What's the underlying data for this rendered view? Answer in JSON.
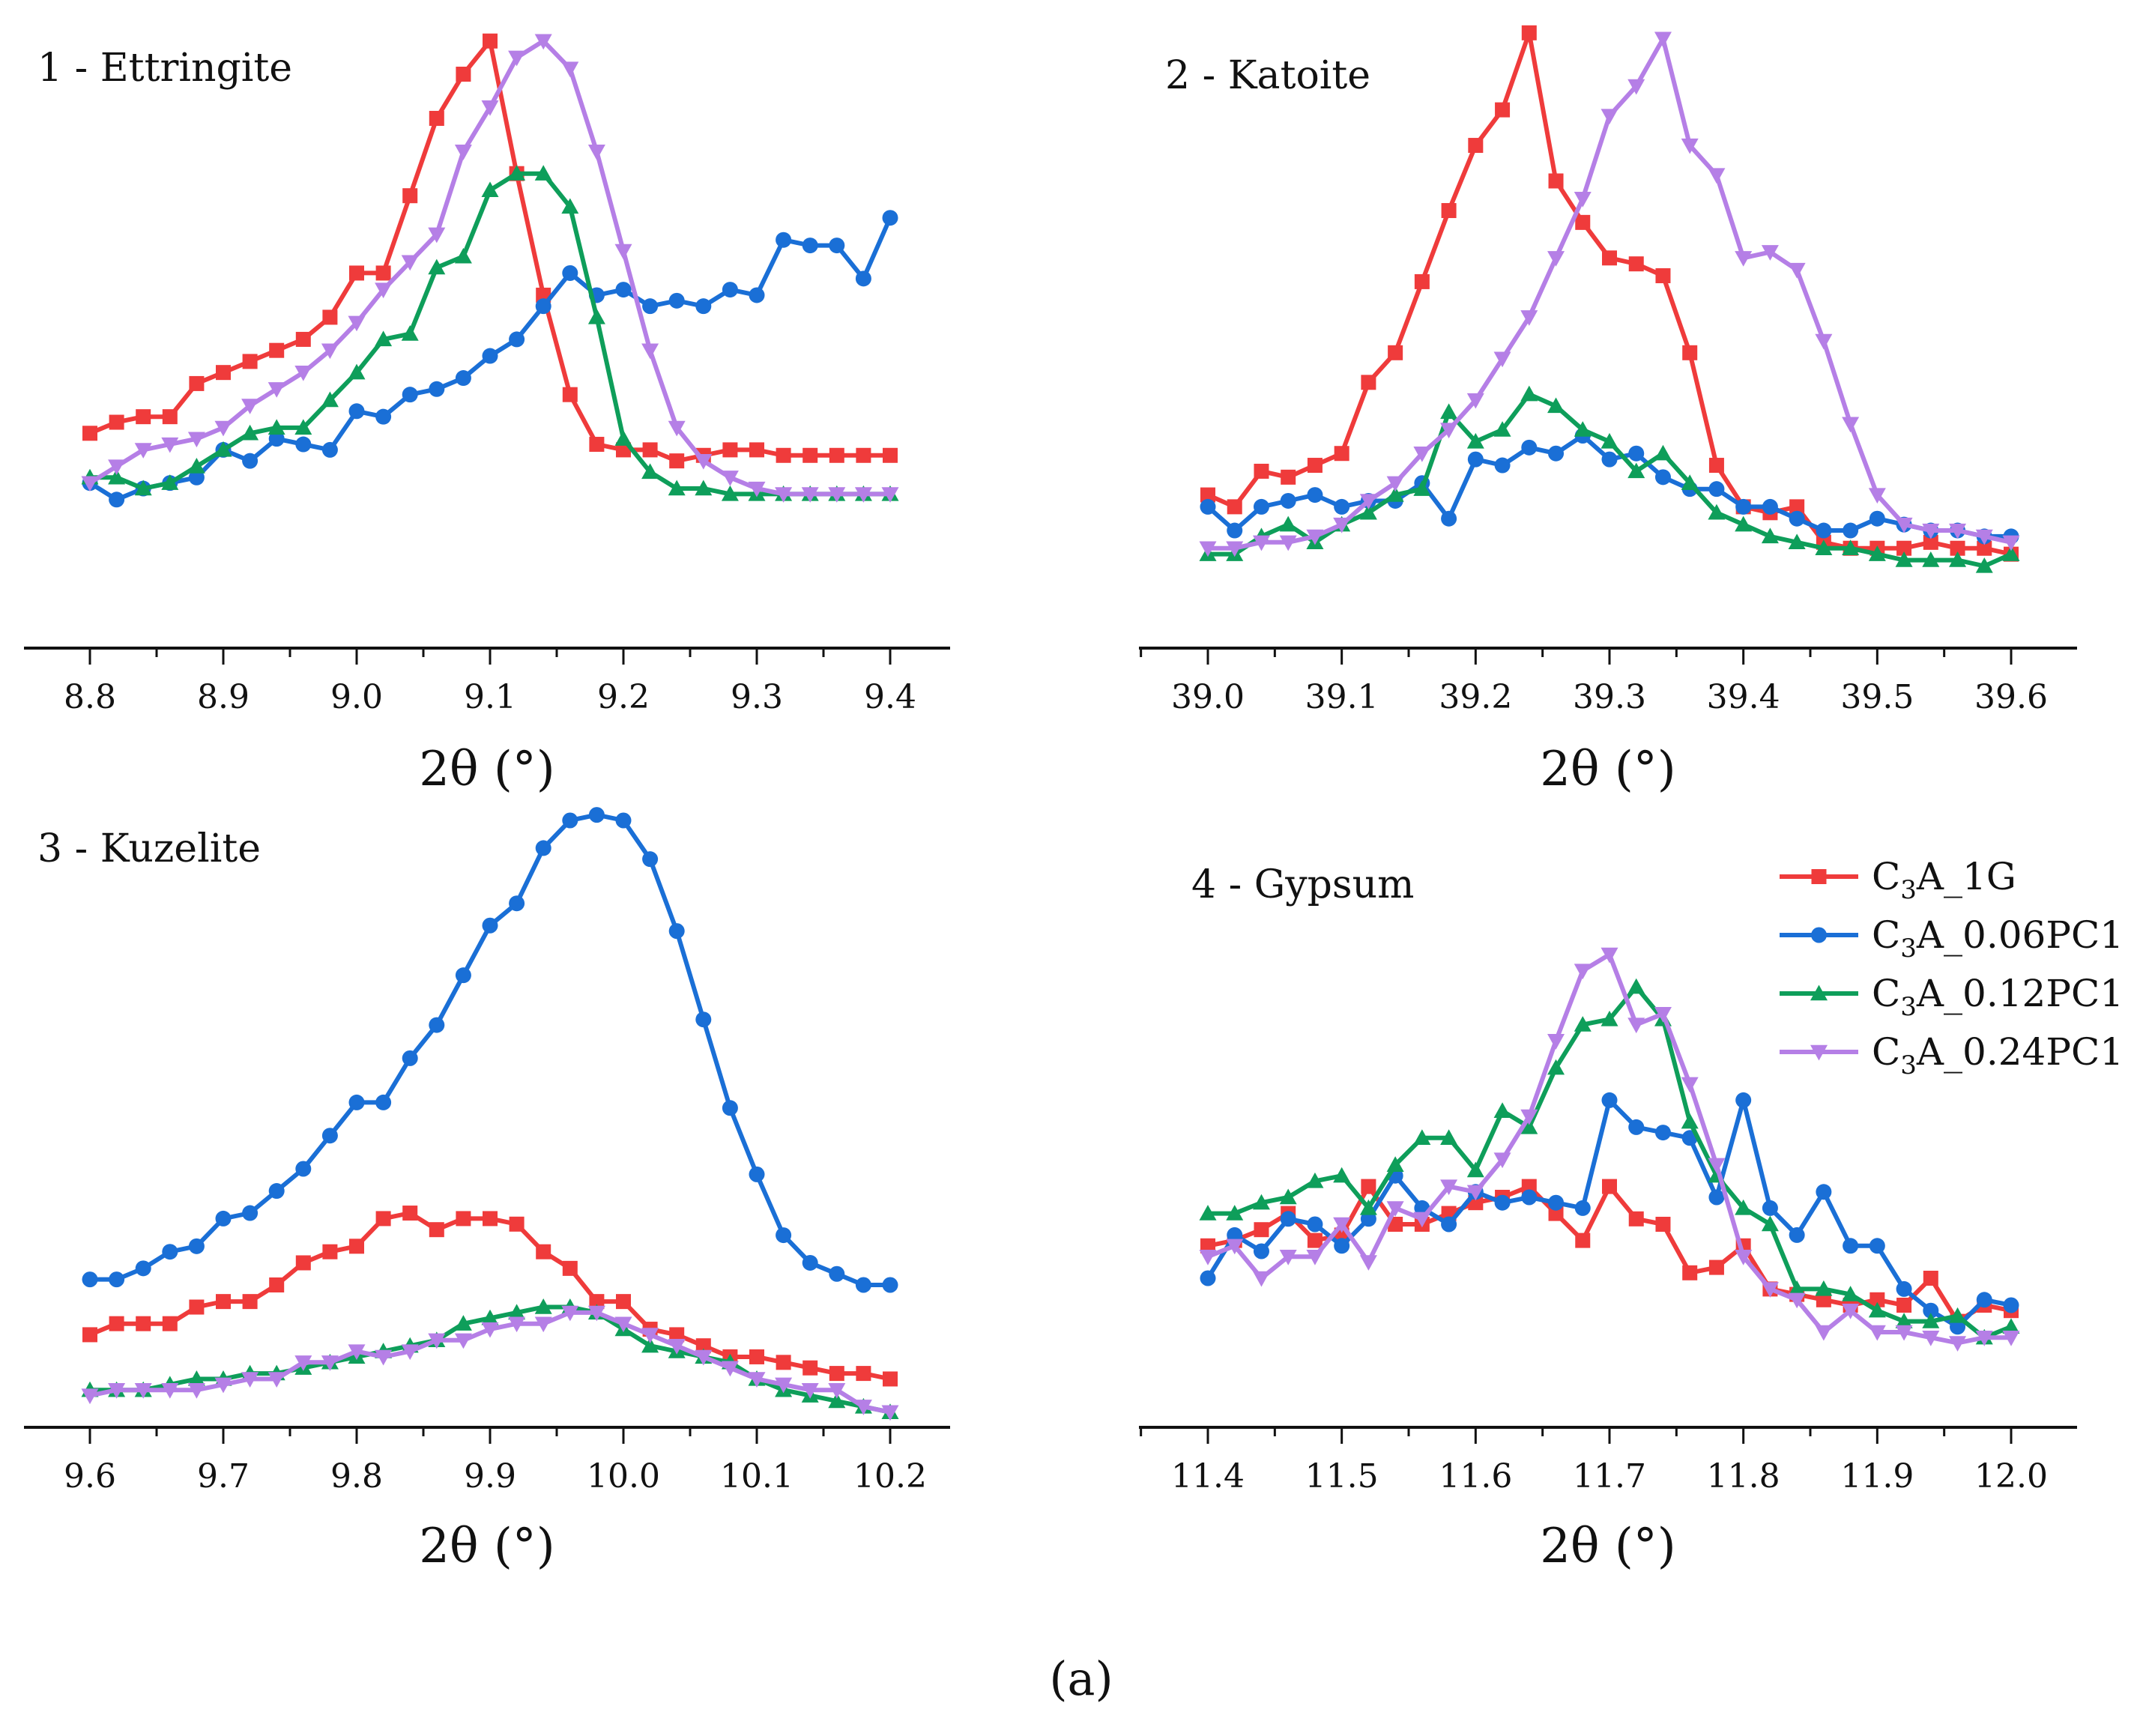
{
  "figure_caption": "(a)",
  "legend": [
    {
      "label_parts": [
        "C",
        "3",
        "A_1G"
      ],
      "color": "#ef3b3b",
      "marker": "square"
    },
    {
      "label_parts": [
        "C",
        "3",
        "A_0.06PC1"
      ],
      "color": "#1a6fd6",
      "marker": "circle"
    },
    {
      "label_parts": [
        "C",
        "3",
        "A_0.12PC1"
      ],
      "color": "#0e9e5a",
      "marker": "triangle-up"
    },
    {
      "label_parts": [
        "C",
        "3",
        "A_0.24PC1"
      ],
      "color": "#b57fe6",
      "marker": "triangle-down"
    }
  ],
  "chart_data": [
    {
      "type": "line",
      "title": "1 - Ettringite",
      "xlabel": "2θ (°)",
      "ylabel": "",
      "xlim": [
        8.75,
        9.45
      ],
      "ylim": [
        0.03,
        1.02
      ],
      "xticks": [
        "8.8",
        "8.9",
        "9.0",
        "9.1",
        "9.2",
        "9.3",
        "9.4"
      ],
      "x_start": 8.8,
      "x_step": 0.02,
      "series": [
        {
          "name": "C3A_1G",
          "values": [
            0.29,
            0.31,
            0.32,
            0.32,
            0.38,
            0.4,
            0.42,
            0.44,
            0.46,
            0.5,
            0.58,
            0.58,
            0.72,
            0.86,
            0.94,
            1.0,
            0.76,
            0.54,
            0.36,
            0.27,
            0.26,
            0.26,
            0.24,
            0.25,
            0.26,
            0.26,
            0.25,
            0.25,
            0.25,
            0.25,
            0.25
          ]
        },
        {
          "name": "C3A_0.06PC1",
          "values": [
            0.2,
            0.17,
            0.19,
            0.2,
            0.21,
            0.26,
            0.24,
            0.28,
            0.27,
            0.26,
            0.33,
            0.32,
            0.36,
            0.37,
            0.39,
            0.43,
            0.46,
            0.52,
            0.58,
            0.54,
            0.55,
            0.52,
            0.53,
            0.52,
            0.55,
            0.54,
            0.64,
            0.63,
            0.63,
            0.57,
            0.68
          ]
        },
        {
          "name": "C3A_0.12PC1",
          "values": [
            0.21,
            0.21,
            0.19,
            0.2,
            0.23,
            0.26,
            0.29,
            0.3,
            0.3,
            0.35,
            0.4,
            0.46,
            0.47,
            0.59,
            0.61,
            0.73,
            0.76,
            0.76,
            0.7,
            0.5,
            0.28,
            0.22,
            0.19,
            0.19,
            0.18,
            0.18,
            0.18,
            0.18,
            0.18,
            0.18,
            0.18
          ]
        },
        {
          "name": "C3A_0.24PC1",
          "values": [
            0.2,
            0.23,
            0.26,
            0.27,
            0.28,
            0.3,
            0.34,
            0.37,
            0.4,
            0.44,
            0.49,
            0.55,
            0.6,
            0.65,
            0.8,
            0.88,
            0.97,
            1.0,
            0.95,
            0.8,
            0.62,
            0.44,
            0.3,
            0.24,
            0.21,
            0.19,
            0.18,
            0.18,
            0.18,
            0.18,
            0.18
          ]
        }
      ]
    },
    {
      "type": "line",
      "title": "2 - Katoite",
      "xlabel": "2θ (°)",
      "ylabel": "",
      "xlim": [
        38.95,
        39.65
      ],
      "ylim": [
        0.05,
        1.02
      ],
      "xticks": [
        "39.0",
        "39.1",
        "39.2",
        "39.3",
        "39.4",
        "39.5",
        "39.6"
      ],
      "x_start": 39.0,
      "x_step": 0.02,
      "series": [
        {
          "name": "C3A_1G",
          "values": [
            0.22,
            0.2,
            0.26,
            0.25,
            0.27,
            0.29,
            0.41,
            0.46,
            0.58,
            0.7,
            0.81,
            0.87,
            1.0,
            0.75,
            0.68,
            0.62,
            0.61,
            0.59,
            0.46,
            0.27,
            0.2,
            0.19,
            0.2,
            0.14,
            0.13,
            0.13,
            0.13,
            0.14,
            0.13,
            0.13,
            0.12
          ]
        },
        {
          "name": "C3A_0.06PC1",
          "values": [
            0.2,
            0.16,
            0.2,
            0.21,
            0.22,
            0.2,
            0.21,
            0.21,
            0.24,
            0.18,
            0.28,
            0.27,
            0.3,
            0.29,
            0.32,
            0.28,
            0.29,
            0.25,
            0.23,
            0.23,
            0.2,
            0.2,
            0.18,
            0.16,
            0.16,
            0.18,
            0.17,
            0.16,
            0.16,
            0.15,
            0.15
          ]
        },
        {
          "name": "C3A_0.12PC1",
          "values": [
            0.12,
            0.12,
            0.15,
            0.17,
            0.14,
            0.17,
            0.19,
            0.22,
            0.23,
            0.36,
            0.31,
            0.33,
            0.39,
            0.37,
            0.33,
            0.31,
            0.26,
            0.29,
            0.24,
            0.19,
            0.17,
            0.15,
            0.14,
            0.13,
            0.13,
            0.12,
            0.11,
            0.11,
            0.11,
            0.1,
            0.12
          ]
        },
        {
          "name": "C3A_0.24PC1",
          "values": [
            0.13,
            0.13,
            0.14,
            0.14,
            0.15,
            0.17,
            0.21,
            0.24,
            0.29,
            0.33,
            0.38,
            0.45,
            0.52,
            0.62,
            0.72,
            0.86,
            0.91,
            0.99,
            0.81,
            0.76,
            0.62,
            0.63,
            0.6,
            0.48,
            0.34,
            0.22,
            0.17,
            0.16,
            0.16,
            0.15,
            0.14
          ]
        }
      ]
    },
    {
      "type": "line",
      "title": "3 - Kuzelite",
      "xlabel": "2θ (°)",
      "ylabel": "",
      "xlim": [
        9.55,
        10.25
      ],
      "ylim": [
        0.0,
        1.05
      ],
      "xticks": [
        "9.6",
        "9.7",
        "9.8",
        "9.9",
        "10.0",
        "10.1",
        "10.2"
      ],
      "x_start": 9.6,
      "x_step": 0.02,
      "series": [
        {
          "name": "C3A_1G",
          "values": [
            0.12,
            0.14,
            0.14,
            0.14,
            0.17,
            0.18,
            0.18,
            0.21,
            0.25,
            0.27,
            0.28,
            0.33,
            0.34,
            0.31,
            0.33,
            0.33,
            0.32,
            0.27,
            0.24,
            0.18,
            0.18,
            0.13,
            0.12,
            0.1,
            0.08,
            0.08,
            0.07,
            0.06,
            0.05,
            0.05,
            0.04
          ]
        },
        {
          "name": "C3A_0.06PC1",
          "values": [
            0.22,
            0.22,
            0.24,
            0.27,
            0.28,
            0.33,
            0.34,
            0.38,
            0.42,
            0.48,
            0.54,
            0.54,
            0.62,
            0.68,
            0.77,
            0.86,
            0.9,
            1.0,
            1.05,
            1.06,
            1.05,
            0.98,
            0.85,
            0.69,
            0.53,
            0.41,
            0.3,
            0.25,
            0.23,
            0.21,
            0.21
          ]
        },
        {
          "name": "C3A_0.12PC1",
          "values": [
            0.02,
            0.02,
            0.02,
            0.03,
            0.04,
            0.04,
            0.05,
            0.05,
            0.06,
            0.07,
            0.08,
            0.09,
            0.1,
            0.11,
            0.14,
            0.15,
            0.16,
            0.17,
            0.17,
            0.16,
            0.13,
            0.1,
            0.09,
            0.08,
            0.07,
            0.04,
            0.02,
            0.01,
            0.0,
            -0.01,
            -0.02
          ]
        },
        {
          "name": "C3A_0.24PC1",
          "values": [
            0.01,
            0.02,
            0.02,
            0.02,
            0.02,
            0.03,
            0.04,
            0.04,
            0.07,
            0.07,
            0.09,
            0.08,
            0.09,
            0.11,
            0.11,
            0.13,
            0.14,
            0.14,
            0.16,
            0.16,
            0.14,
            0.12,
            0.1,
            0.08,
            0.06,
            0.04,
            0.03,
            0.02,
            0.02,
            -0.01,
            -0.02
          ]
        }
      ]
    },
    {
      "type": "line",
      "title": "4 - Gypsum",
      "xlabel": "2θ (°)",
      "ylabel": "",
      "xlim": [
        11.35,
        12.05
      ],
      "ylim": [
        0.0,
        1.0
      ],
      "xticks": [
        "11.4",
        "11.5",
        "11.6",
        "11.7",
        "11.8",
        "11.9",
        "12.0"
      ],
      "x_start": 11.4,
      "x_step": 0.02,
      "series": [
        {
          "name": "C3A_1G",
          "values": [
            0.26,
            0.27,
            0.29,
            0.32,
            0.27,
            0.28,
            0.37,
            0.3,
            0.3,
            0.32,
            0.34,
            0.35,
            0.37,
            0.32,
            0.27,
            0.37,
            0.31,
            0.3,
            0.21,
            0.22,
            0.26,
            0.18,
            0.17,
            0.16,
            0.15,
            0.16,
            0.15,
            0.2,
            0.12,
            0.15,
            0.14
          ]
        },
        {
          "name": "C3A_0.06PC1",
          "values": [
            0.2,
            0.28,
            0.25,
            0.31,
            0.3,
            0.26,
            0.31,
            0.39,
            0.33,
            0.3,
            0.36,
            0.34,
            0.35,
            0.34,
            0.33,
            0.53,
            0.48,
            0.47,
            0.46,
            0.35,
            0.53,
            0.33,
            0.28,
            0.36,
            0.26,
            0.26,
            0.18,
            0.14,
            0.11,
            0.16,
            0.15
          ]
        },
        {
          "name": "C3A_0.12PC1",
          "values": [
            0.32,
            0.32,
            0.34,
            0.35,
            0.38,
            0.39,
            0.33,
            0.41,
            0.46,
            0.46,
            0.4,
            0.51,
            0.48,
            0.59,
            0.67,
            0.68,
            0.74,
            0.68,
            0.49,
            0.39,
            0.33,
            0.3,
            0.18,
            0.18,
            0.17,
            0.14,
            0.12,
            0.12,
            0.13,
            0.09,
            0.11
          ]
        },
        {
          "name": "C3A_0.24PC1",
          "values": [
            0.24,
            0.26,
            0.2,
            0.24,
            0.24,
            0.3,
            0.23,
            0.33,
            0.31,
            0.37,
            0.36,
            0.42,
            0.5,
            0.64,
            0.77,
            0.8,
            0.67,
            0.69,
            0.56,
            0.41,
            0.24,
            0.18,
            0.16,
            0.1,
            0.14,
            0.1,
            0.1,
            0.09,
            0.08,
            0.09,
            0.09
          ]
        }
      ]
    }
  ]
}
